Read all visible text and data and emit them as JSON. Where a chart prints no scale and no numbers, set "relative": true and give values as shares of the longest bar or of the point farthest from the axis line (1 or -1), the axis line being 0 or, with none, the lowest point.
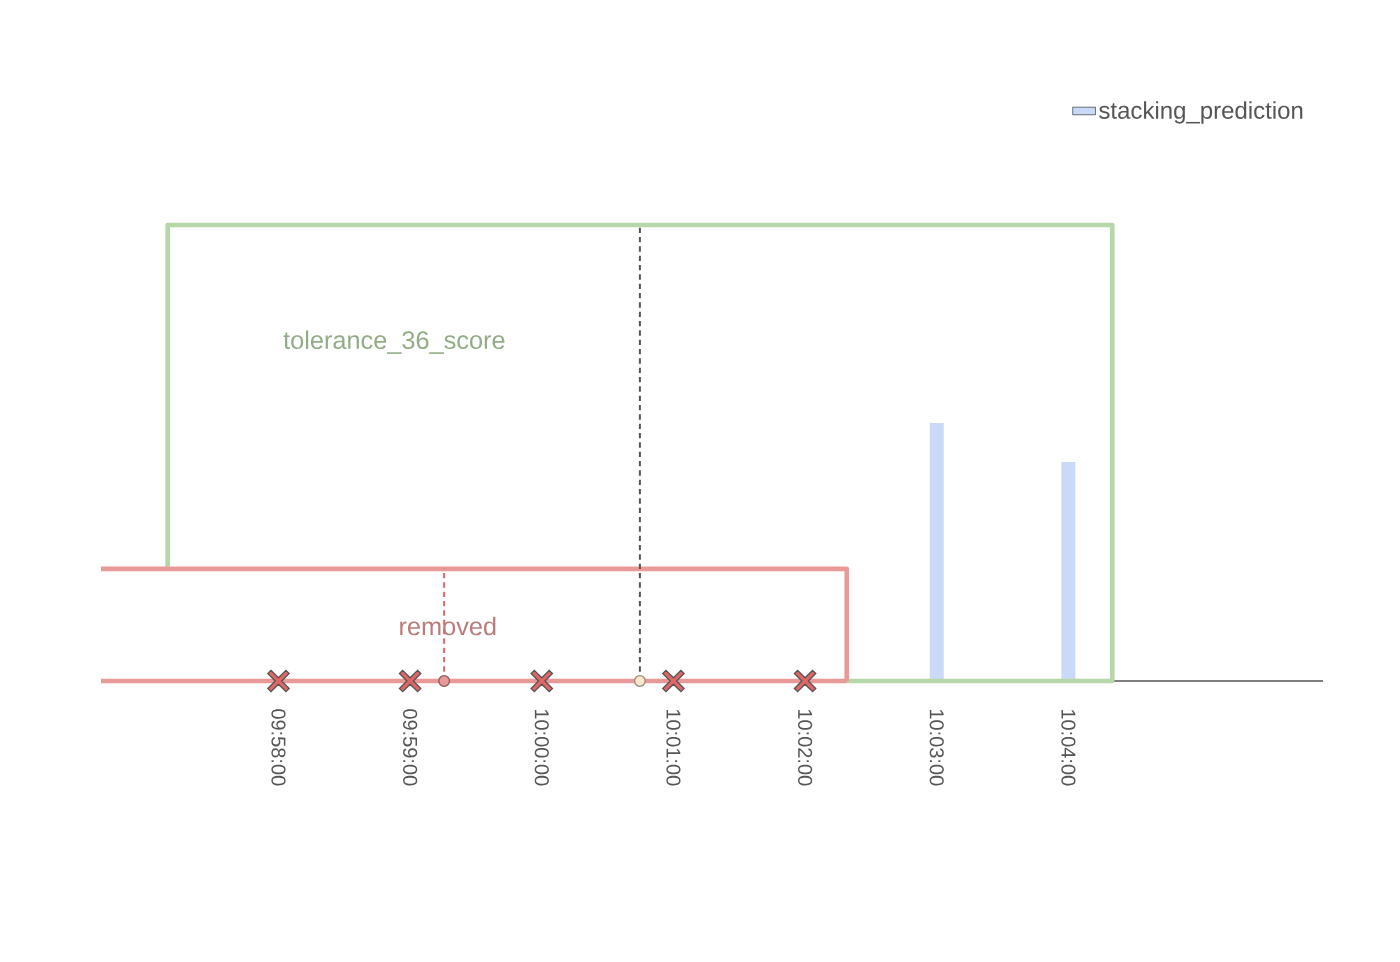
{
  "chart_data": {
    "type": "bar",
    "relative": true,
    "legend": "top right",
    "tick_labels": "x",
    "xlim": [
      9.9442,
      10.0989
    ],
    "xticks": [
      {
        "value": 9.966667,
        "label": "09:58:00"
      },
      {
        "value": 9.983333,
        "label": "09:59:00"
      },
      {
        "value": 10.0,
        "label": "10:00:00"
      },
      {
        "value": 10.016667,
        "label": "10:01:00"
      },
      {
        "value": 10.033333,
        "label": "10:02:00"
      },
      {
        "value": 10.05,
        "label": "10:03:00"
      },
      {
        "value": 10.066667,
        "label": "10:04:00"
      }
    ],
    "series": [
      {
        "name": "stacking_prediction",
        "color": "#c9daf8",
        "x": [
          10.05,
          10.066667
        ],
        "values": [
          0.566,
          0.48
        ]
      },
      {
        "type": "line",
        "color": "#b6d7a8",
        "line_style": "solid",
        "x": [
          9.95264,
          9.95264,
          10.07222,
          10.07222,
          10.03861
        ],
        "values": [
          0.246,
          1,
          1,
          0,
          0
        ]
      },
      {
        "type": "line",
        "color": "#ea9999",
        "line_style": "solid",
        "x": [
          9.9442,
          10.03861,
          10.03861
        ],
        "values": [
          0.246,
          0.246,
          0
        ]
      },
      {
        "type": "line",
        "color": "#ea9999",
        "line_style": "solid",
        "x": [
          9.9442,
          10.03861
        ],
        "values": [
          0,
          0
        ]
      },
      {
        "type": "line",
        "color": "#e06666",
        "line_style": "dashed",
        "x": [
          9.98764,
          9.98764
        ],
        "values": [
          0,
          0.246
        ]
      },
      {
        "type": "line",
        "color": "#555555",
        "line_style": "dashed",
        "x": [
          10.01242,
          10.01242
        ],
        "values": [
          0,
          1
        ]
      },
      {
        "type": "scatter",
        "marker": "cross",
        "color": "#e06666",
        "x": [
          9.966667,
          9.983333,
          10.0,
          10.016667,
          10.033333
        ],
        "values": [
          0,
          0,
          0,
          0,
          0
        ]
      },
      {
        "type": "scatter",
        "marker": "circle",
        "colors": [
          "#ea9999",
          "#fce5cd"
        ],
        "x": [
          9.98764,
          10.01242
        ],
        "values": [
          0,
          0
        ]
      }
    ],
    "annotations": [
      "tolerance_36_score",
      "removed"
    ]
  }
}
